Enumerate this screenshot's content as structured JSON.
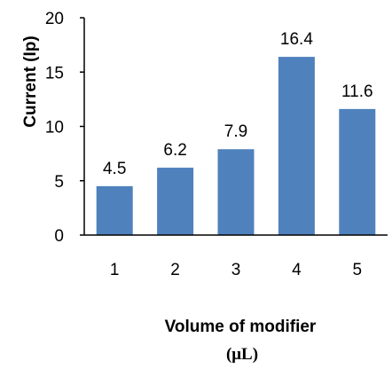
{
  "chart_data": {
    "type": "bar",
    "categories": [
      "1",
      "2",
      "3",
      "4",
      "5"
    ],
    "values": [
      4.5,
      6.2,
      7.9,
      16.4,
      11.6
    ],
    "data_labels": [
      "4.5",
      "6.2",
      "7.9",
      "16.4",
      "11.6"
    ],
    "title": "",
    "xlabel_line1": "Volume of modifier",
    "xlabel_line2": "(μL)",
    "ylabel": "Current (Ip)",
    "ylim": [
      0,
      20
    ],
    "yticks": [
      "0",
      "5",
      "10",
      "15",
      "20"
    ],
    "ytick_values": [
      0,
      5,
      10,
      15,
      20
    ],
    "grid": false,
    "legend": "none",
    "bar_color": "#4f81bd",
    "axis_color": "#000000"
  }
}
